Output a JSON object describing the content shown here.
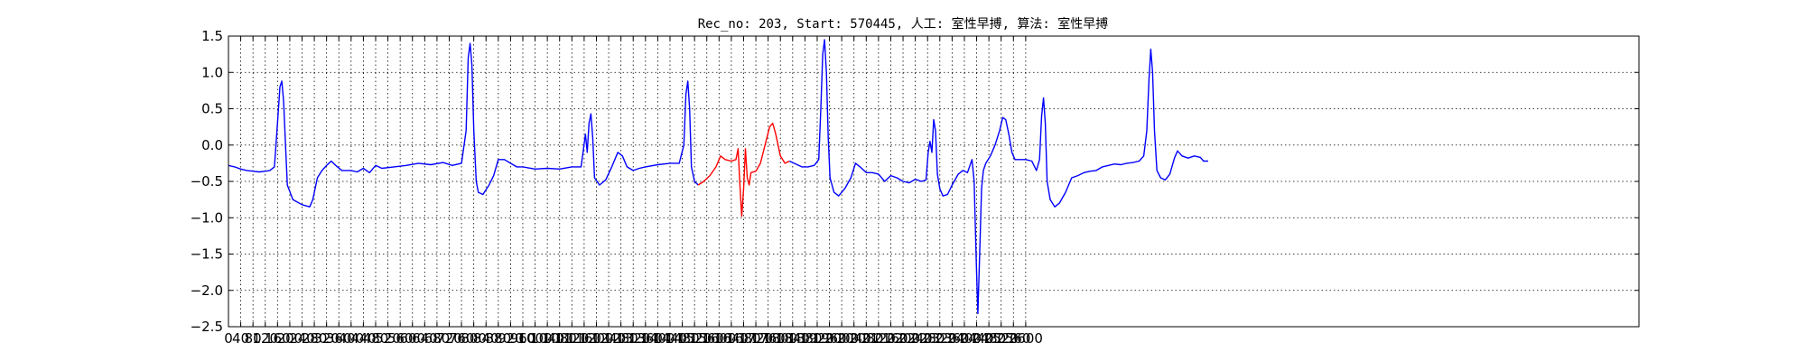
{
  "chart_data": {
    "type": "line",
    "title": "Rec_no: 203, Start: 570445, 人工: 室性早搏, 算法: 室性早搏",
    "xlabel": "",
    "ylabel": "",
    "xlim": [
      0,
      4600
    ],
    "ylim": [
      -2.5,
      1.5
    ],
    "grid": true,
    "x_ticks": [
      0,
      40,
      80,
      120,
      160,
      200,
      240,
      280,
      320,
      360,
      400,
      440,
      480,
      520,
      560,
      600,
      640,
      680,
      720,
      760,
      800,
      840,
      880,
      920,
      960,
      1000,
      1040,
      1080,
      1120,
      1160,
      1200,
      1240,
      1280,
      1320,
      1360,
      1400,
      1440,
      1480,
      1520,
      1560,
      1600,
      1640,
      1680,
      1720,
      1760,
      1800,
      1840,
      1880,
      1920,
      1960,
      2000,
      2040,
      2080,
      2120,
      2160,
      2200,
      2240,
      2280,
      2320,
      2360,
      2400,
      2440,
      2480,
      2520,
      2560,
      2600
    ],
    "x_tick_labels": [
      "0",
      "40",
      "80",
      "120",
      "160",
      "200",
      "240",
      "280",
      "320",
      "360",
      "400",
      "440",
      "480",
      "520",
      "560",
      "600",
      "640",
      "680",
      "720",
      "760",
      "800",
      "840",
      "880",
      "920",
      "960",
      "1000",
      "1040",
      "1080",
      "1120",
      "1160",
      "1200",
      "1240",
      "1280",
      "1320",
      "1360",
      "1400",
      "1440",
      "1480",
      "1520",
      "1560",
      "1600",
      "1640",
      "1680",
      "1720",
      "1760",
      "1800",
      "1840",
      "1880",
      "1920",
      "1960",
      "2000",
      "2040",
      "2080",
      "2120",
      "2160",
      "2200",
      "2240",
      "2280",
      "2320",
      "2360",
      "2400",
      "2440",
      "2480",
      "2520",
      "2560",
      "2600"
    ],
    "y_ticks": [
      1.5,
      1.0,
      0.5,
      0.0,
      -0.5,
      -1.0,
      -1.5,
      -2.0,
      -2.5
    ],
    "y_tick_labels": [
      "1.5",
      "1.0",
      "0.5",
      "0.0",
      "−0.5",
      "−1.0",
      "−1.5",
      "−2.0",
      "−2.5"
    ],
    "series": [
      {
        "color": "#0000ff",
        "points": [
          [
            0,
            -0.28
          ],
          [
            20,
            -0.3
          ],
          [
            40,
            -0.33
          ],
          [
            60,
            -0.35
          ],
          [
            80,
            -0.36
          ],
          [
            100,
            -0.37
          ],
          [
            120,
            -0.36
          ],
          [
            135,
            -0.35
          ],
          [
            150,
            -0.3
          ],
          [
            160,
            0.3
          ],
          [
            168,
            0.8
          ],
          [
            174,
            0.88
          ],
          [
            180,
            0.6
          ],
          [
            186,
            0.0
          ],
          [
            192,
            -0.55
          ],
          [
            210,
            -0.75
          ],
          [
            240,
            -0.82
          ],
          [
            265,
            -0.85
          ],
          [
            275,
            -0.75
          ],
          [
            290,
            -0.45
          ],
          [
            305,
            -0.35
          ],
          [
            320,
            -0.28
          ],
          [
            335,
            -0.22
          ],
          [
            350,
            -0.28
          ],
          [
            370,
            -0.35
          ],
          [
            400,
            -0.35
          ],
          [
            420,
            -0.37
          ],
          [
            440,
            -0.32
          ],
          [
            460,
            -0.38
          ],
          [
            480,
            -0.28
          ],
          [
            500,
            -0.32
          ],
          [
            540,
            -0.3
          ],
          [
            580,
            -0.28
          ],
          [
            620,
            -0.25
          ],
          [
            660,
            -0.27
          ],
          [
            700,
            -0.24
          ],
          [
            730,
            -0.28
          ],
          [
            760,
            -0.25
          ],
          [
            775,
            0.2
          ],
          [
            782,
            1.2
          ],
          [
            788,
            1.4
          ],
          [
            794,
            1.1
          ],
          [
            800,
            0.2
          ],
          [
            808,
            -0.5
          ],
          [
            815,
            -0.65
          ],
          [
            830,
            -0.68
          ],
          [
            850,
            -0.55
          ],
          [
            865,
            -0.42
          ],
          [
            880,
            -0.2
          ],
          [
            900,
            -0.2
          ],
          [
            920,
            -0.25
          ],
          [
            940,
            -0.3
          ],
          [
            960,
            -0.3
          ],
          [
            1000,
            -0.33
          ],
          [
            1040,
            -0.32
          ],
          [
            1080,
            -0.33
          ],
          [
            1120,
            -0.3
          ],
          [
            1150,
            -0.3
          ],
          [
            1158,
            -0.05
          ],
          [
            1164,
            0.15
          ],
          [
            1170,
            -0.1
          ],
          [
            1176,
            0.3
          ],
          [
            1182,
            0.43
          ],
          [
            1188,
            0.1
          ],
          [
            1194,
            -0.45
          ],
          [
            1210,
            -0.55
          ],
          [
            1230,
            -0.48
          ],
          [
            1250,
            -0.3
          ],
          [
            1270,
            -0.1
          ],
          [
            1285,
            -0.15
          ],
          [
            1300,
            -0.3
          ],
          [
            1320,
            -0.35
          ],
          [
            1340,
            -0.32
          ],
          [
            1360,
            -0.3
          ],
          [
            1400,
            -0.27
          ],
          [
            1440,
            -0.25
          ],
          [
            1470,
            -0.25
          ],
          [
            1485,
            0.0
          ],
          [
            1492,
            0.7
          ],
          [
            1498,
            0.88
          ],
          [
            1504,
            0.5
          ],
          [
            1510,
            -0.3
          ],
          [
            1520,
            -0.5
          ],
          [
            1532,
            -0.55
          ]
        ]
      },
      {
        "color": "#ff0000",
        "points": [
          [
            1532,
            -0.55
          ],
          [
            1550,
            -0.5
          ],
          [
            1570,
            -0.42
          ],
          [
            1590,
            -0.3
          ],
          [
            1605,
            -0.15
          ],
          [
            1620,
            -0.2
          ],
          [
            1640,
            -0.22
          ],
          [
            1655,
            -0.2
          ],
          [
            1662,
            -0.05
          ],
          [
            1668,
            -0.55
          ],
          [
            1674,
            -0.98
          ],
          [
            1680,
            -0.6
          ],
          [
            1686,
            -0.05
          ],
          [
            1692,
            -0.45
          ],
          [
            1698,
            -0.55
          ],
          [
            1704,
            -0.38
          ],
          [
            1720,
            -0.36
          ],
          [
            1735,
            -0.25
          ],
          [
            1750,
            0.0
          ],
          [
            1765,
            0.25
          ],
          [
            1775,
            0.3
          ],
          [
            1785,
            0.15
          ],
          [
            1800,
            -0.15
          ],
          [
            1815,
            -0.25
          ],
          [
            1830,
            -0.22
          ]
        ]
      },
      {
        "color": "#0000ff",
        "points": [
          [
            1830,
            -0.22
          ],
          [
            1850,
            -0.26
          ],
          [
            1870,
            -0.3
          ],
          [
            1890,
            -0.3
          ],
          [
            1910,
            -0.28
          ],
          [
            1925,
            -0.2
          ],
          [
            1932,
            0.5
          ],
          [
            1938,
            1.25
          ],
          [
            1944,
            1.45
          ],
          [
            1950,
            1.0
          ],
          [
            1956,
            0.1
          ],
          [
            1962,
            -0.45
          ],
          [
            1975,
            -0.65
          ],
          [
            1990,
            -0.7
          ],
          [
            2010,
            -0.6
          ],
          [
            2030,
            -0.45
          ],
          [
            2045,
            -0.25
          ],
          [
            2060,
            -0.3
          ],
          [
            2080,
            -0.38
          ],
          [
            2100,
            -0.38
          ],
          [
            2120,
            -0.4
          ],
          [
            2140,
            -0.5
          ],
          [
            2160,
            -0.42
          ],
          [
            2180,
            -0.45
          ],
          [
            2200,
            -0.5
          ],
          [
            2220,
            -0.52
          ],
          [
            2240,
            -0.47
          ],
          [
            2260,
            -0.5
          ],
          [
            2275,
            -0.48
          ],
          [
            2282,
            -0.1
          ],
          [
            2288,
            0.05
          ],
          [
            2294,
            -0.1
          ],
          [
            2300,
            0.35
          ],
          [
            2306,
            0.2
          ],
          [
            2312,
            -0.4
          ],
          [
            2320,
            -0.6
          ],
          [
            2330,
            -0.7
          ],
          [
            2345,
            -0.68
          ],
          [
            2360,
            -0.55
          ],
          [
            2380,
            -0.4
          ],
          [
            2395,
            -0.35
          ],
          [
            2410,
            -0.38
          ],
          [
            2425,
            -0.2
          ],
          [
            2432,
            -0.5
          ],
          [
            2438,
            -1.5
          ],
          [
            2444,
            -2.32
          ],
          [
            2450,
            -1.5
          ],
          [
            2456,
            -0.6
          ],
          [
            2462,
            -0.35
          ],
          [
            2470,
            -0.25
          ],
          [
            2485,
            -0.15
          ],
          [
            2500,
            0.0
          ],
          [
            2515,
            0.2
          ],
          [
            2525,
            0.38
          ],
          [
            2535,
            0.35
          ],
          [
            2545,
            0.15
          ],
          [
            2555,
            -0.1
          ],
          [
            2565,
            -0.2
          ],
          [
            2585,
            -0.2
          ],
          [
            2600,
            -0.2
          ],
          [
            2620,
            -0.22
          ],
          [
            2635,
            -0.35
          ],
          [
            2645,
            -0.2
          ],
          [
            2652,
            0.4
          ],
          [
            2658,
            0.65
          ],
          [
            2664,
            0.3
          ],
          [
            2670,
            -0.5
          ],
          [
            2680,
            -0.75
          ],
          [
            2695,
            -0.85
          ],
          [
            2710,
            -0.8
          ],
          [
            2730,
            -0.65
          ],
          [
            2750,
            -0.45
          ],
          [
            2770,
            -0.42
          ],
          [
            2790,
            -0.38
          ],
          [
            2810,
            -0.36
          ],
          [
            2830,
            -0.35
          ],
          [
            2850,
            -0.3
          ],
          [
            2870,
            -0.28
          ],
          [
            2890,
            -0.26
          ],
          [
            2910,
            -0.27
          ],
          [
            2930,
            -0.25
          ],
          [
            2950,
            -0.24
          ],
          [
            2970,
            -0.22
          ],
          [
            2985,
            -0.15
          ],
          [
            2995,
            0.2
          ],
          [
            3002,
            0.9
          ],
          [
            3008,
            1.32
          ],
          [
            3014,
            1.0
          ],
          [
            3020,
            0.2
          ],
          [
            3028,
            -0.35
          ],
          [
            3040,
            -0.45
          ],
          [
            3055,
            -0.48
          ],
          [
            3070,
            -0.4
          ],
          [
            3085,
            -0.18
          ],
          [
            3095,
            -0.08
          ],
          [
            3110,
            -0.15
          ],
          [
            3130,
            -0.18
          ],
          [
            3150,
            -0.15
          ],
          [
            3170,
            -0.17
          ],
          [
            3180,
            -0.22
          ],
          [
            3195,
            -0.22
          ]
        ]
      }
    ]
  }
}
